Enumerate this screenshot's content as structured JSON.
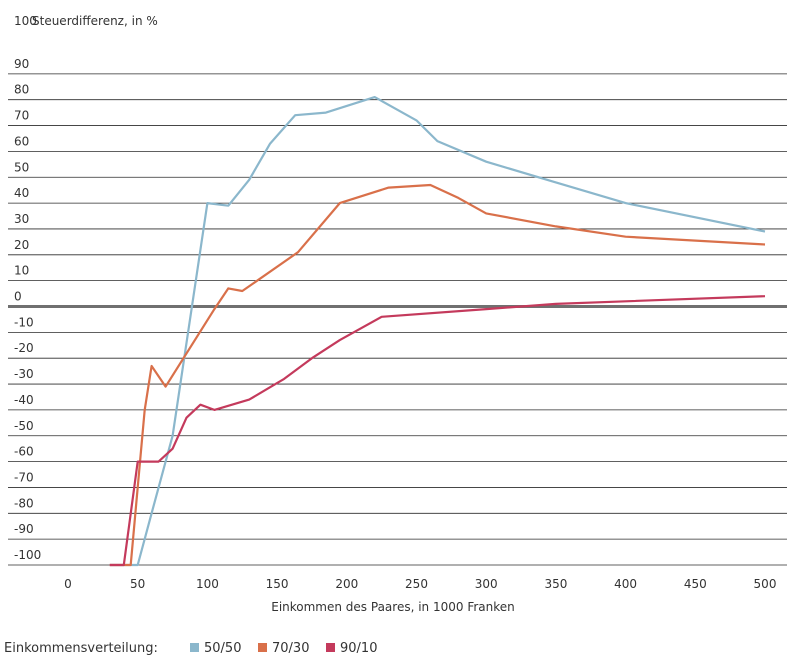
{
  "chart_data": {
    "type": "line",
    "title": "Steuerdifferenz, in %",
    "xlabel": "Einkommen des Paares, in 1000 Franken",
    "ylabel": "Steuerdifferenz, in %",
    "xlim": [
      0,
      500
    ],
    "ylim": [
      -100,
      100
    ],
    "x_ticks": [
      "0",
      "50",
      "100",
      "150",
      "200",
      "250",
      "300",
      "350",
      "400",
      "450",
      "500"
    ],
    "y_ticks": [
      "100",
      "90",
      "80",
      "70",
      "60",
      "50",
      "40",
      "30",
      "20",
      "10",
      "0",
      "-10",
      "-20",
      "-30",
      "-40",
      "-50",
      "-60",
      "-70",
      "-80",
      "-90",
      "-100"
    ],
    "grid": true,
    "legend_title": "Einkommensverteilung:",
    "legend_position": "bottom-left",
    "series": [
      {
        "name": "50/50",
        "color": "#8bb7cc",
        "points": [
          [
            30,
            -100
          ],
          [
            50,
            -100
          ],
          [
            60,
            -80
          ],
          [
            75,
            -50
          ],
          [
            100,
            40
          ],
          [
            115,
            39
          ],
          [
            130,
            49
          ],
          [
            145,
            63
          ],
          [
            163,
            74
          ],
          [
            185,
            75
          ],
          [
            220,
            81
          ],
          [
            250,
            72
          ],
          [
            265,
            64
          ],
          [
            300,
            56
          ],
          [
            350,
            48
          ],
          [
            400,
            40
          ],
          [
            500,
            29
          ]
        ]
      },
      {
        "name": "70/30",
        "color": "#d9704a",
        "points": [
          [
            30,
            -100
          ],
          [
            45,
            -100
          ],
          [
            55,
            -40
          ],
          [
            60,
            -23
          ],
          [
            70,
            -31
          ],
          [
            105,
            -1
          ],
          [
            115,
            7
          ],
          [
            125,
            6
          ],
          [
            165,
            21
          ],
          [
            195,
            40
          ],
          [
            230,
            46
          ],
          [
            260,
            47
          ],
          [
            280,
            42
          ],
          [
            300,
            36
          ],
          [
            350,
            31
          ],
          [
            400,
            27
          ],
          [
            500,
            24
          ]
        ]
      },
      {
        "name": "90/10",
        "color": "#c43a5c",
        "points": [
          [
            30,
            -100
          ],
          [
            40,
            -100
          ],
          [
            50,
            -60
          ],
          [
            55,
            -60
          ],
          [
            65,
            -60
          ],
          [
            75,
            -55
          ],
          [
            85,
            -43
          ],
          [
            95,
            -38
          ],
          [
            105,
            -40
          ],
          [
            130,
            -36
          ],
          [
            155,
            -28
          ],
          [
            175,
            -20
          ],
          [
            195,
            -13
          ],
          [
            225,
            -4
          ],
          [
            300,
            -1
          ],
          [
            350,
            1
          ],
          [
            400,
            2
          ],
          [
            500,
            4
          ]
        ]
      }
    ]
  }
}
